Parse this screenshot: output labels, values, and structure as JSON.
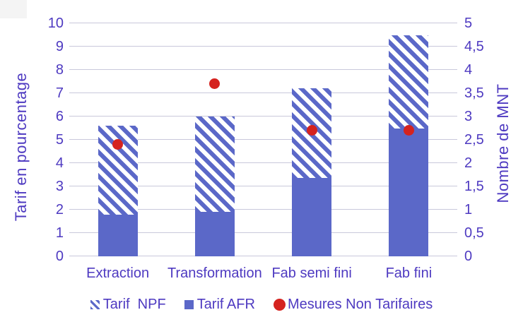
{
  "chart_data": {
    "type": "bar",
    "subtype": "stacked-bars-with-scatter-overlay",
    "categories": [
      "Extraction",
      "Transformation",
      "Fab semi fini",
      "Fab fini"
    ],
    "series": [
      {
        "name": "Tarif NPF",
        "role": "bar-hatched-stacked-top",
        "axis": "left",
        "values": [
          3.8,
          4.1,
          3.85,
          4.0
        ]
      },
      {
        "name": "Tarif AFR",
        "role": "bar-solid-stacked-bottom",
        "axis": "left",
        "values": [
          1.8,
          1.9,
          3.35,
          5.5
        ]
      },
      {
        "name": "Mesures Non Tarifaires",
        "role": "scatter-points",
        "axis": "right",
        "values": [
          2.4,
          3.7,
          2.7,
          2.7
        ]
      }
    ],
    "stacked_totals": [
      5.6,
      6.0,
      7.2,
      9.5
    ],
    "left_axis": {
      "label": "Tarif en pourcentage",
      "min": 0,
      "max": 10,
      "step": 1,
      "ticks": [
        "0",
        "1",
        "2",
        "3",
        "4",
        "5",
        "6",
        "7",
        "8",
        "9",
        "10"
      ]
    },
    "right_axis": {
      "label": "Nombre de MNT",
      "min": 0,
      "max": 5,
      "step": 0.5,
      "ticks": [
        "0",
        "0,5",
        "1",
        "1,5",
        "2",
        "2,5",
        "3",
        "3,5",
        "4",
        "4,5",
        "5"
      ]
    },
    "grid": true,
    "legend_position": "bottom"
  },
  "legend": {
    "items": [
      {
        "label": "Tarif  NPF",
        "marker": "hatched-square"
      },
      {
        "label": "Tarif AFR",
        "marker": "solid-square"
      },
      {
        "label": "Mesures Non Tarifaires",
        "marker": "red-circle"
      }
    ]
  },
  "colors": {
    "bar_blue": "#5b68c8",
    "text_purple": "#4e3ac1",
    "gridline": "#c9c8db",
    "dot_red": "#d5231f",
    "background": "#ffffff"
  }
}
